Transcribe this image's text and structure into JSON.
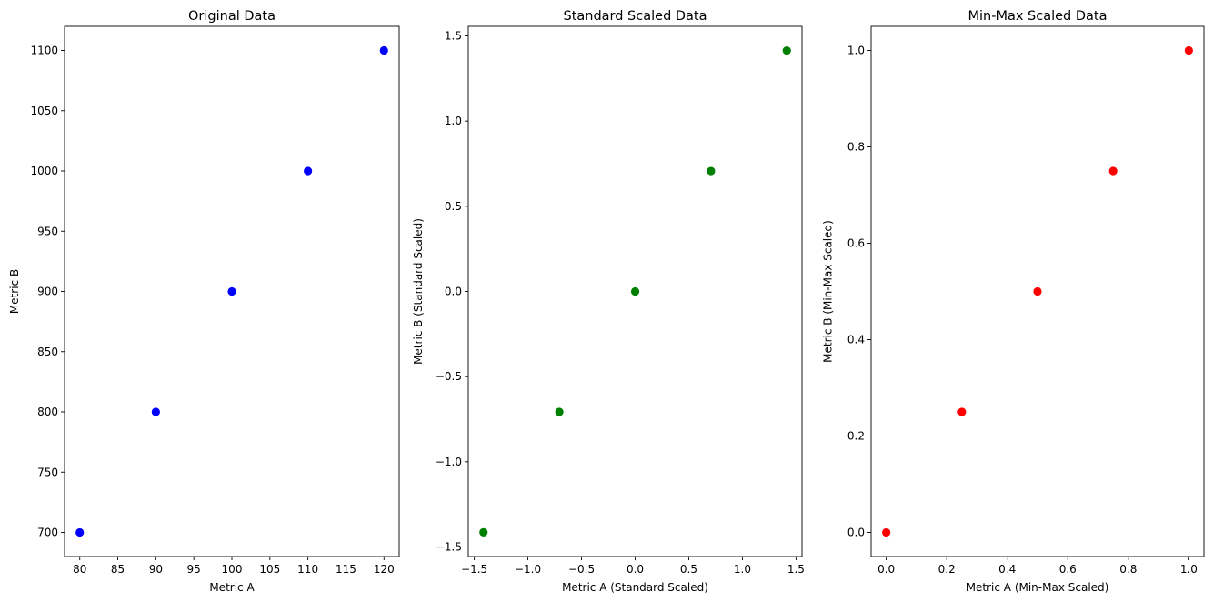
{
  "chart_data": [
    {
      "type": "scatter",
      "title": "Original Data",
      "xlabel": "Metric A",
      "ylabel": "Metric B",
      "color": "#0000ff",
      "x": [
        80,
        90,
        100,
        110,
        120
      ],
      "y": [
        700,
        800,
        900,
        1000,
        1100
      ],
      "xlim": [
        78,
        122
      ],
      "ylim": [
        680,
        1120
      ],
      "xticks": [
        80,
        85,
        90,
        95,
        100,
        105,
        110,
        115,
        120
      ],
      "xtick_labels": [
        "80",
        "85",
        "90",
        "95",
        "100",
        "105",
        "110",
        "115",
        "120"
      ],
      "yticks": [
        700,
        750,
        800,
        850,
        900,
        950,
        1000,
        1050,
        1100
      ],
      "ytick_labels": [
        "700",
        "750",
        "800",
        "850",
        "900",
        "950",
        "1000",
        "1050",
        "1100"
      ],
      "grid": false
    },
    {
      "type": "scatter",
      "title": "Standard Scaled Data",
      "xlabel": "Metric A (Standard Scaled)",
      "ylabel": "Metric B (Standard Scaled)",
      "color": "#008000",
      "x": [
        -1.414,
        -0.707,
        0.0,
        0.707,
        1.414
      ],
      "y": [
        -1.414,
        -0.707,
        0.0,
        0.707,
        1.414
      ],
      "xlim": [
        -1.556,
        1.556
      ],
      "ylim": [
        -1.556,
        1.556
      ],
      "xticks": [
        -1.5,
        -1.0,
        -0.5,
        0.0,
        0.5,
        1.0,
        1.5
      ],
      "xtick_labels": [
        "−1.5",
        "−1.0",
        "−0.5",
        "0.0",
        "0.5",
        "1.0",
        "1.5"
      ],
      "yticks": [
        -1.5,
        -1.0,
        -0.5,
        0.0,
        0.5,
        1.0,
        1.5
      ],
      "ytick_labels": [
        "−1.5",
        "−1.0",
        "−0.5",
        "0.0",
        "0.5",
        "1.0",
        "1.5"
      ],
      "grid": false
    },
    {
      "type": "scatter",
      "title": "Min-Max Scaled Data",
      "xlabel": "Metric A (Min-Max Scaled)",
      "ylabel": "Metric B (Min-Max Scaled)",
      "color": "#ff0000",
      "x": [
        0.0,
        0.25,
        0.5,
        0.75,
        1.0
      ],
      "y": [
        0.0,
        0.25,
        0.5,
        0.75,
        1.0
      ],
      "xlim": [
        -0.05,
        1.05
      ],
      "ylim": [
        -0.05,
        1.05
      ],
      "xticks": [
        0.0,
        0.2,
        0.4,
        0.6,
        0.8,
        1.0
      ],
      "xtick_labels": [
        "0.0",
        "0.2",
        "0.4",
        "0.6",
        "0.8",
        "1.0"
      ],
      "yticks": [
        0.0,
        0.2,
        0.4,
        0.6,
        0.8,
        1.0
      ],
      "ytick_labels": [
        "0.0",
        "0.2",
        "0.4",
        "0.6",
        "0.8",
        "1.0"
      ],
      "grid": false
    }
  ]
}
